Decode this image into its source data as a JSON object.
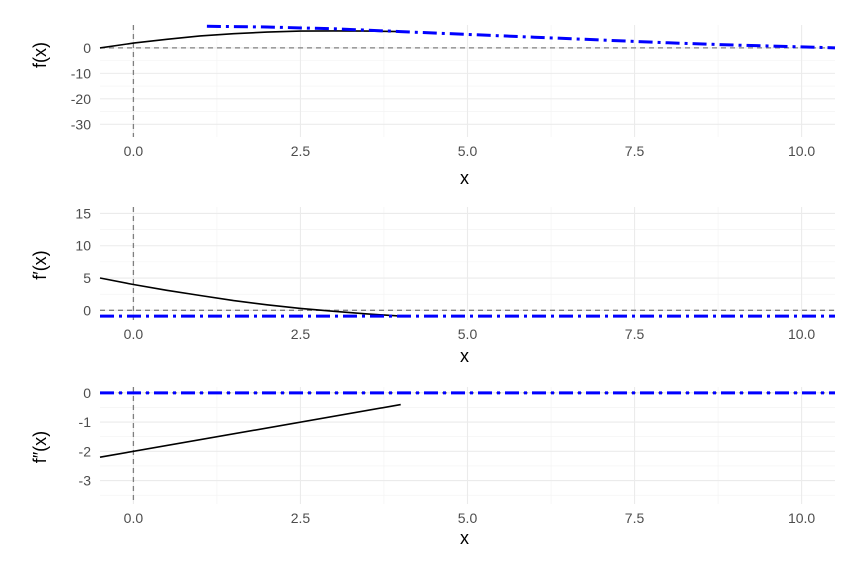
{
  "colors": {
    "fx": "#000000",
    "reference": "#0000ff",
    "guide": "#7f7f7f"
  },
  "chart_data": [
    {
      "type": "line",
      "xlabel": "x",
      "ylabel": "f(x)",
      "xlim": [
        -0.5,
        10.5
      ],
      "ylim": [
        -35,
        9
      ],
      "x_ticks": [
        0,
        2.5,
        5,
        7.5,
        10
      ],
      "x_tick_labels": [
        "0.0",
        "2.5",
        "5.0",
        "7.5",
        "10.0"
      ],
      "y_ticks": [
        0,
        -10,
        -20,
        -30
      ],
      "y_tick_labels": [
        "0",
        "-10",
        "-20",
        "-30"
      ],
      "hline": 0,
      "vline": 0,
      "grid": true,
      "series": [
        {
          "style": "solid",
          "color": "#000000",
          "x": [
            -0.5,
            0,
            0.5,
            1,
            1.5,
            2,
            2.5,
            3,
            3.5,
            4
          ],
          "y": [
            0,
            1.9,
            3.4,
            4.7,
            5.6,
            6.2,
            6.6,
            6.7,
            6.6,
            6.4
          ]
        },
        {
          "style": "dashdot",
          "color": "#0000ff",
          "x": [
            1.1,
            2,
            3,
            4,
            5,
            6,
            7,
            8,
            9,
            10,
            10.5
          ],
          "y": [
            8.5,
            8.2,
            7.5,
            6.4,
            5.3,
            4.2,
            3.1,
            2.0,
            1.1,
            0.4,
            0
          ]
        }
      ]
    },
    {
      "type": "line",
      "xlabel": "x",
      "ylabel": "f′(x)",
      "xlim": [
        -0.5,
        10.5
      ],
      "ylim": [
        -1.5,
        16
      ],
      "x_ticks": [
        0,
        2.5,
        5,
        7.5,
        10
      ],
      "x_tick_labels": [
        "0.0",
        "2.5",
        "5.0",
        "7.5",
        "10.0"
      ],
      "y_ticks": [
        0,
        5,
        10,
        15
      ],
      "y_tick_labels": [
        "0",
        "5",
        "10",
        "15"
      ],
      "hline": 0,
      "vline": 0,
      "grid": true,
      "series": [
        {
          "style": "solid",
          "color": "#000000",
          "x": [
            -0.5,
            0,
            0.5,
            1,
            1.5,
            2,
            2.5,
            3,
            3.5,
            4
          ],
          "y": [
            5.0,
            4.0,
            3.1,
            2.3,
            1.5,
            0.85,
            0.3,
            -0.15,
            -0.55,
            -0.9
          ]
        },
        {
          "style": "dashdot",
          "color": "#0000ff",
          "x": [
            -0.5,
            10.5
          ],
          "y": [
            -0.9,
            -0.9
          ]
        }
      ]
    },
    {
      "type": "line",
      "xlabel": "x",
      "ylabel": "f″(x)",
      "xlim": [
        -0.5,
        10.5
      ],
      "ylim": [
        -3.8,
        0.2
      ],
      "x_ticks": [
        0,
        2.5,
        5,
        7.5,
        10
      ],
      "x_tick_labels": [
        "0.0",
        "2.5",
        "5.0",
        "7.5",
        "10.0"
      ],
      "y_ticks": [
        0,
        -1,
        -2,
        -3
      ],
      "y_tick_labels": [
        "0",
        "-1",
        "-2",
        "-3"
      ],
      "hline": 0,
      "vline": 0,
      "grid": true,
      "series": [
        {
          "style": "solid",
          "color": "#000000",
          "x": [
            -0.5,
            4
          ],
          "y": [
            -2.2,
            -0.4
          ]
        },
        {
          "style": "dashdot",
          "color": "#0000ff",
          "x": [
            -0.5,
            10.5
          ],
          "y": [
            0,
            0
          ]
        }
      ]
    }
  ]
}
